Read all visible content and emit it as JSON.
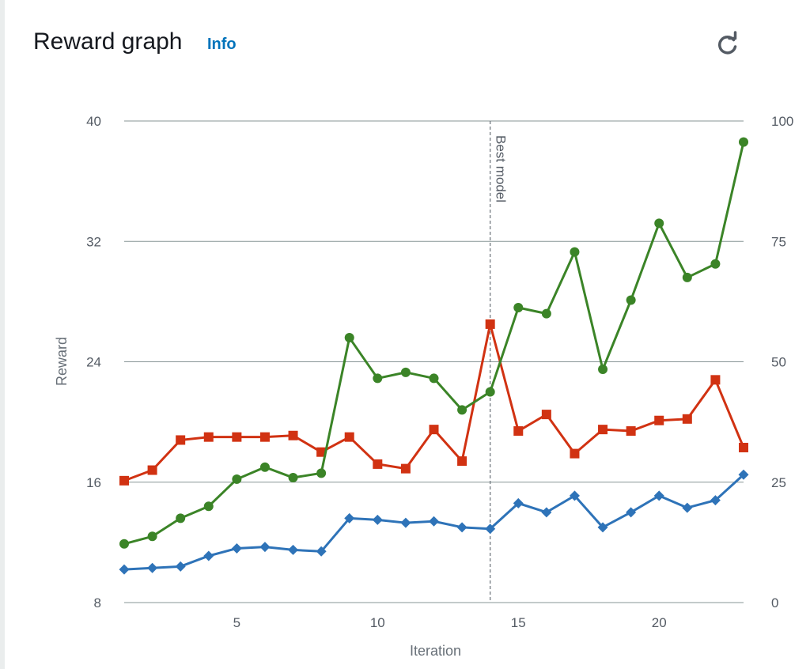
{
  "header": {
    "title": "Reward graph",
    "info_label": "Info",
    "refresh_icon": "refresh-icon"
  },
  "chart_data": {
    "type": "line",
    "title": "Reward graph",
    "xlabel": "Iteration",
    "ylabel": "Reward",
    "xlim": [
      1,
      23
    ],
    "ylim": [
      8,
      40
    ],
    "y2lim": [
      0,
      100
    ],
    "x_ticks": [
      5,
      10,
      15,
      20
    ],
    "y_ticks": [
      8,
      16,
      24,
      32,
      40
    ],
    "y2_ticks": [
      0,
      25,
      50,
      75,
      100
    ],
    "grid": true,
    "x": [
      1,
      2,
      3,
      4,
      5,
      6,
      7,
      8,
      9,
      10,
      11,
      12,
      13,
      14,
      15,
      16,
      17,
      18,
      19,
      20,
      21,
      22,
      23
    ],
    "series": [
      {
        "marker": "square",
        "color": "#d13212",
        "values": [
          16.1,
          16.8,
          18.8,
          19.0,
          19.0,
          19.0,
          19.1,
          18.0,
          19.0,
          17.2,
          16.9,
          19.5,
          17.4,
          26.5,
          19.4,
          20.5,
          17.9,
          19.5,
          19.4,
          20.1,
          20.2,
          22.8,
          18.3
        ]
      },
      {
        "marker": "circle",
        "color": "#3b8427",
        "values": [
          11.9,
          12.4,
          13.6,
          14.4,
          16.2,
          17.0,
          16.3,
          16.6,
          25.6,
          22.9,
          23.3,
          22.9,
          20.8,
          22.0,
          27.6,
          27.2,
          31.3,
          23.5,
          28.1,
          33.2,
          29.6,
          30.5,
          38.6
        ]
      },
      {
        "marker": "diamond",
        "color": "#2e73b8",
        "values": [
          10.2,
          10.3,
          10.4,
          11.1,
          11.6,
          11.7,
          11.5,
          11.4,
          13.6,
          13.5,
          13.3,
          13.4,
          13.0,
          12.9,
          14.6,
          14.0,
          15.1,
          13.0,
          14.0,
          15.1,
          14.3,
          14.8,
          16.5
        ]
      }
    ],
    "annotations": [
      {
        "type": "vertical-line",
        "x": 14,
        "label": "Best model"
      }
    ]
  }
}
